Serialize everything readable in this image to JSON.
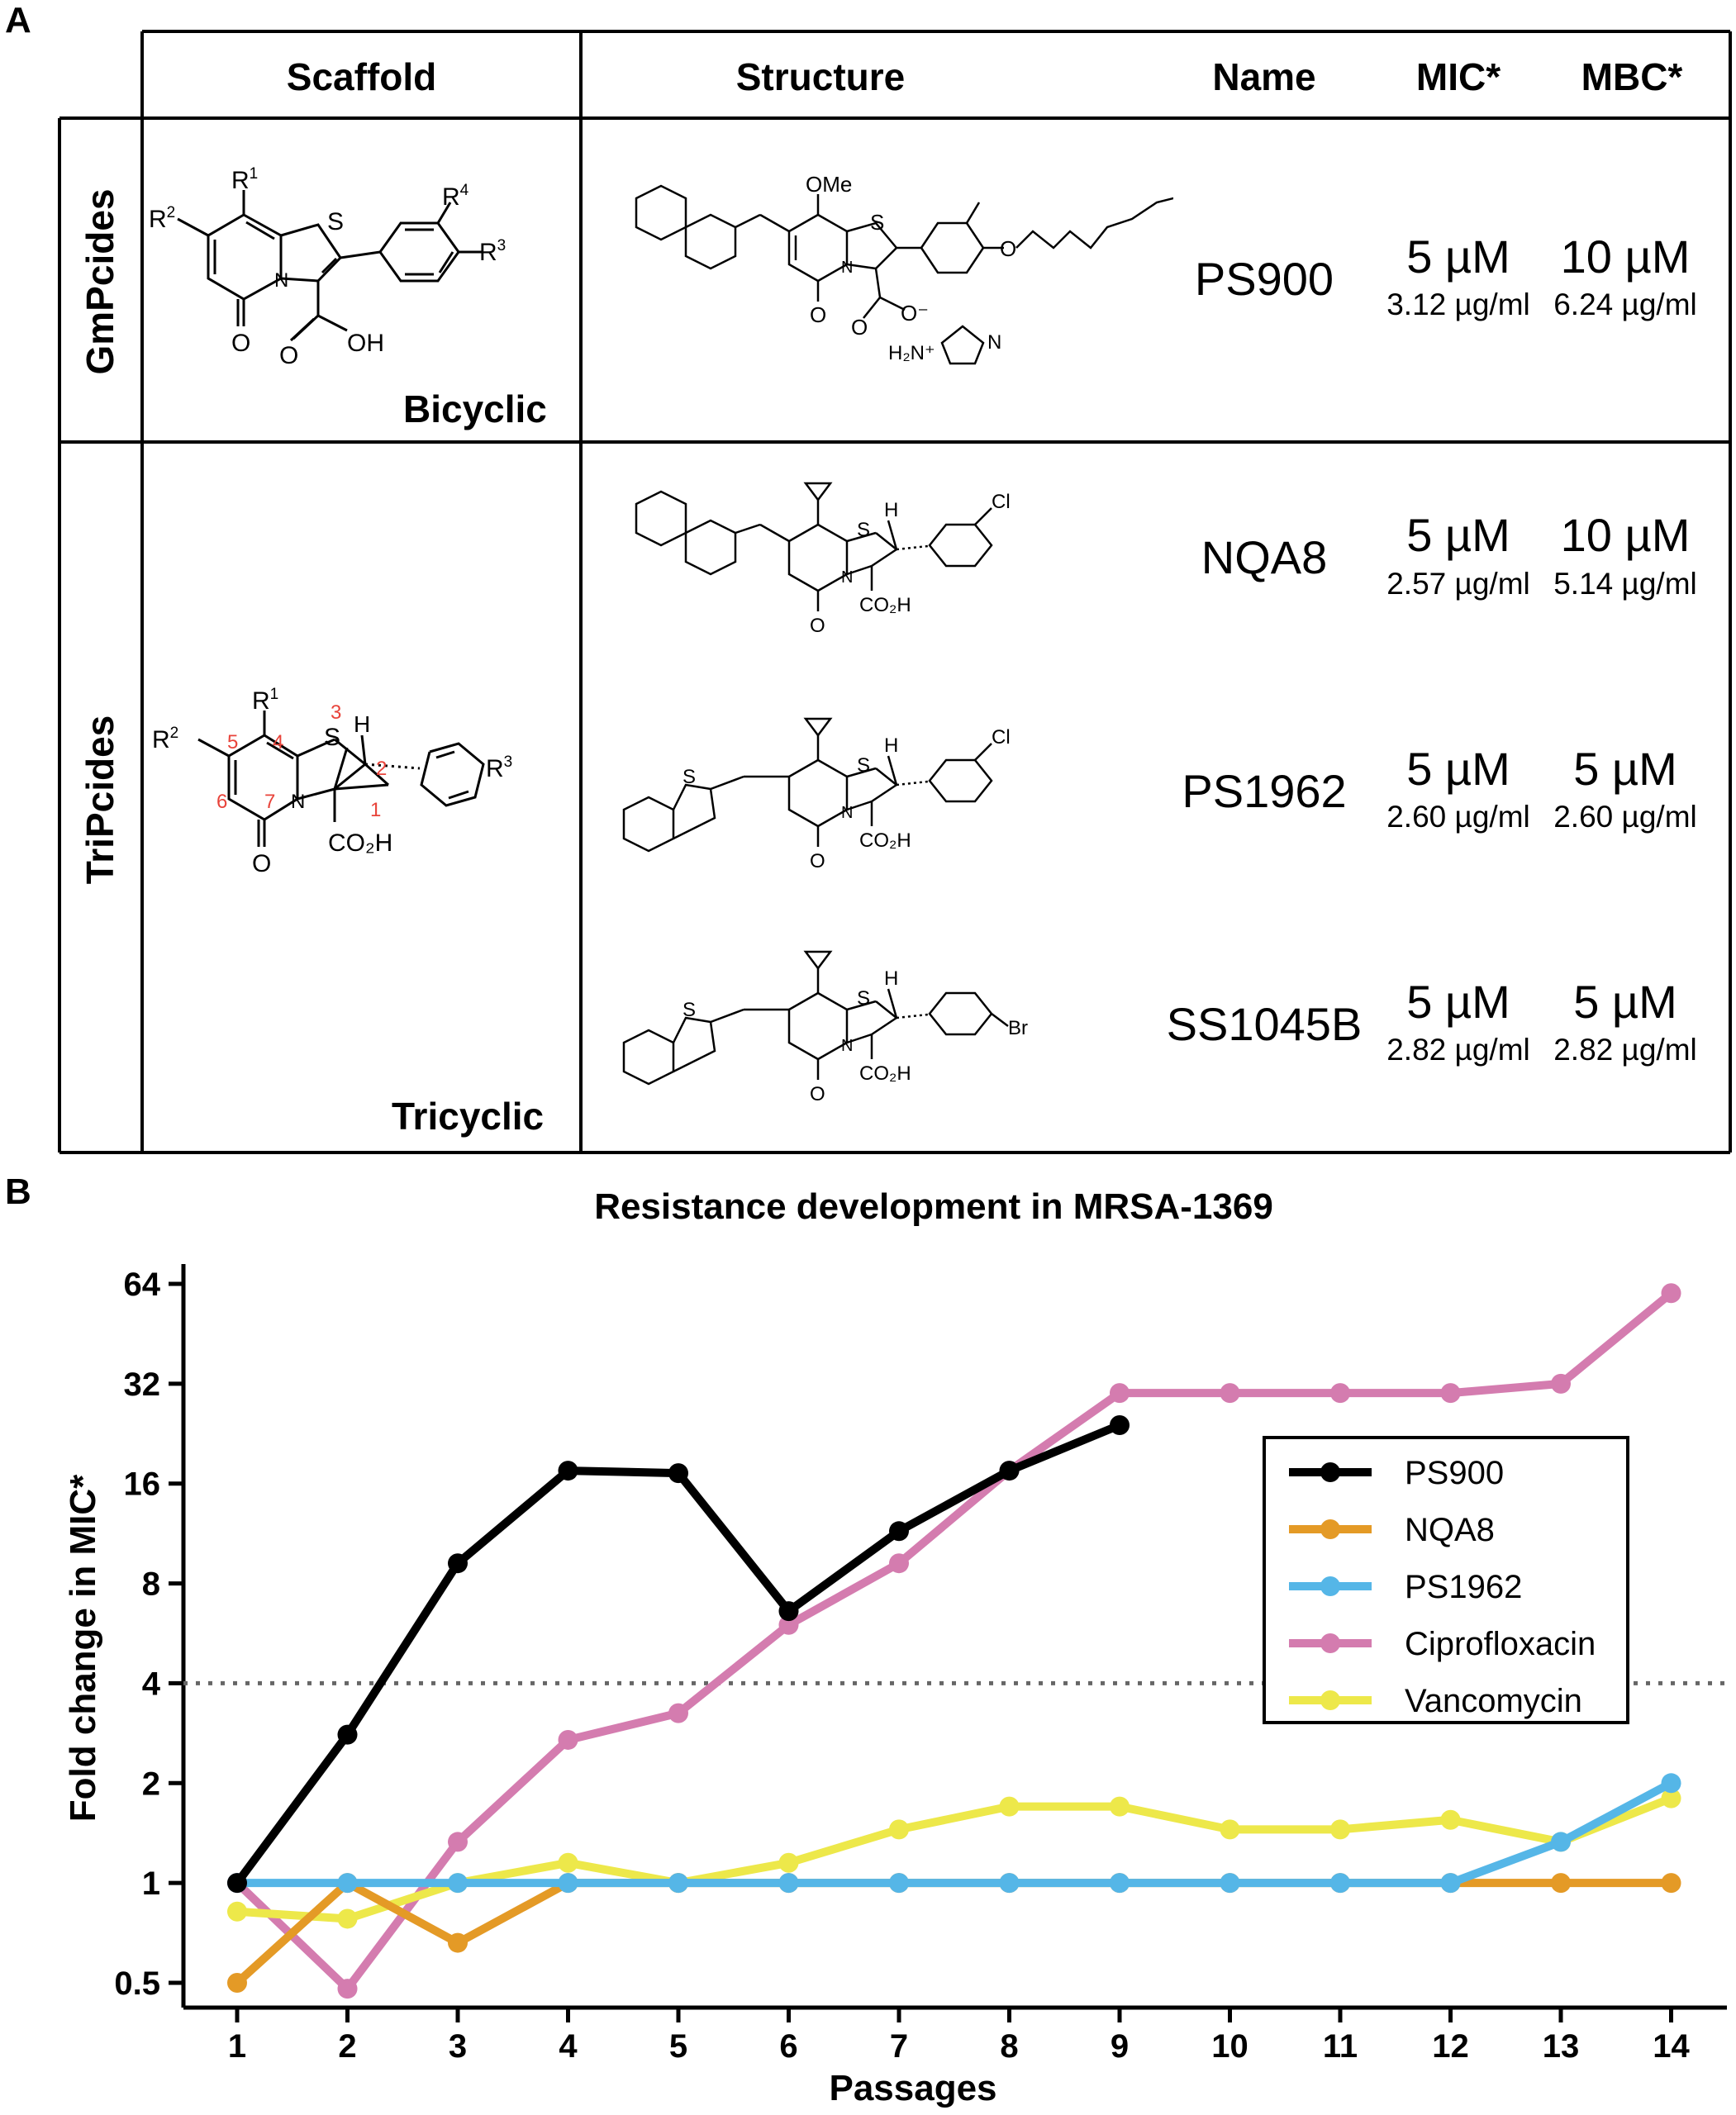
{
  "panel_a": {
    "label": "A",
    "headers": {
      "scaffold": "Scaffold",
      "structure": "Structure",
      "name": "Name",
      "mic": "MIC*",
      "mbc": "MBC*"
    },
    "groups": [
      {
        "label": "GmPcides",
        "scaffold_caption": "Bicyclic",
        "compounds": [
          {
            "name": "PS900",
            "mic": "5 µM",
            "mic_mass": "3.12 µg/ml",
            "mbc": "10 µM",
            "mbc_mass": "6.24 µg/ml"
          }
        ]
      },
      {
        "label": "TriPcides",
        "scaffold_caption": "Tricyclic",
        "compounds": [
          {
            "name": "NQA8",
            "mic": "5 µM",
            "mic_mass": "2.57 µg/ml",
            "mbc": "10 µM",
            "mbc_mass": "5.14 µg/ml"
          },
          {
            "name": "PS1962",
            "mic": "5 µM",
            "mic_mass": "2.60 µg/ml",
            "mbc": "5 µM",
            "mbc_mass": "2.60 µg/ml"
          },
          {
            "name": "SS1045B",
            "mic": "5 µM",
            "mic_mass": "2.82 µg/ml",
            "mbc": "5 µM",
            "mbc_mass": "2.82 µg/ml"
          }
        ]
      }
    ],
    "structure_atoms": {
      "bicyclic": {
        "r1": "R",
        "r1_sup": "1",
        "r2": "R",
        "r2_sup": "2",
        "r3": "R",
        "r3_sup": "3",
        "r4": "R",
        "r4_sup": "4",
        "s": "S",
        "n": "N",
        "o": "O",
        "oh": "OH"
      },
      "tricyclic": {
        "r1": "R",
        "r1_sup": "1",
        "r2": "R",
        "r2_sup": "2",
        "r3": "R",
        "r3_sup": "3",
        "s": "S",
        "n": "N",
        "o": "O",
        "h": "H",
        "co2h": "CO₂H",
        "ring_numbers": [
          "1",
          "2",
          "3",
          "4",
          "5",
          "6",
          "7"
        ]
      },
      "ps900": {
        "ome": "OMe",
        "s": "S",
        "n": "N",
        "o": "O",
        "ominus": "O⁻",
        "nh": "H₂N⁺",
        "n2": "N"
      },
      "tri_common": {
        "s": "S",
        "n": "N",
        "o": "O",
        "h": "H",
        "co2h": "CO₂H",
        "cl": "Cl",
        "br": "Br"
      }
    },
    "colors": {
      "ring_numbers": "#e8433a"
    }
  },
  "panel_b": {
    "label": "B",
    "chart_data": {
      "type": "line",
      "title": "Resistance development in MRSA-1369",
      "xlabel": "Passages",
      "ylabel": "Fold change in MIC*",
      "y_scale": "log2",
      "ylim": [
        0.5,
        64
      ],
      "y_ticks": [
        "0.5",
        "1",
        "2",
        "4",
        "8",
        "16",
        "32",
        "64"
      ],
      "x_ticks": [
        "1",
        "2",
        "3",
        "4",
        "5",
        "6",
        "7",
        "8",
        "9",
        "10",
        "11",
        "12",
        "13",
        "14"
      ],
      "reference_line": {
        "y": 4,
        "style": "dotted"
      },
      "legend_position": "right",
      "series": [
        {
          "name": "PS900",
          "color": "#000000",
          "x": [
            1,
            2,
            3,
            4,
            5,
            6,
            7,
            8,
            9
          ],
          "y": [
            1,
            2.8,
            9.2,
            17.5,
            17.2,
            6.6,
            11.5,
            17.5,
            24
          ]
        },
        {
          "name": "NQA8",
          "color": "#e49a26",
          "x": [
            1,
            2,
            3,
            4,
            5,
            6,
            7,
            8,
            9,
            10,
            11,
            12,
            13,
            14
          ],
          "y": [
            0.5,
            1,
            0.66,
            1,
            1,
            1,
            1,
            1,
            1,
            1,
            1,
            1,
            1,
            1
          ]
        },
        {
          "name": "PS1962",
          "color": "#55b6e7",
          "x": [
            1,
            2,
            3,
            4,
            5,
            6,
            7,
            8,
            9,
            10,
            11,
            12,
            13,
            14
          ],
          "y": [
            1,
            1,
            1,
            1,
            1,
            1,
            1,
            1,
            1,
            1,
            1,
            1,
            1.33,
            2
          ]
        },
        {
          "name": "Ciprofloxacin",
          "color": "#d47caf",
          "x": [
            1,
            2,
            3,
            4,
            5,
            6,
            7,
            8,
            9,
            10,
            11,
            12,
            13,
            14
          ],
          "y": [
            1,
            0.48,
            1.33,
            2.7,
            3.25,
            6.0,
            9.2,
            17.5,
            30,
            30,
            30,
            30,
            32,
            60
          ]
        },
        {
          "name": "Vancomycin",
          "color": "#ede84a",
          "x": [
            1,
            2,
            3,
            4,
            5,
            6,
            7,
            8,
            9,
            10,
            11,
            12,
            13,
            14
          ],
          "y": [
            0.82,
            0.78,
            1.0,
            1.15,
            1.0,
            1.15,
            1.45,
            1.7,
            1.7,
            1.45,
            1.45,
            1.55,
            1.33,
            1.8
          ]
        }
      ]
    }
  }
}
